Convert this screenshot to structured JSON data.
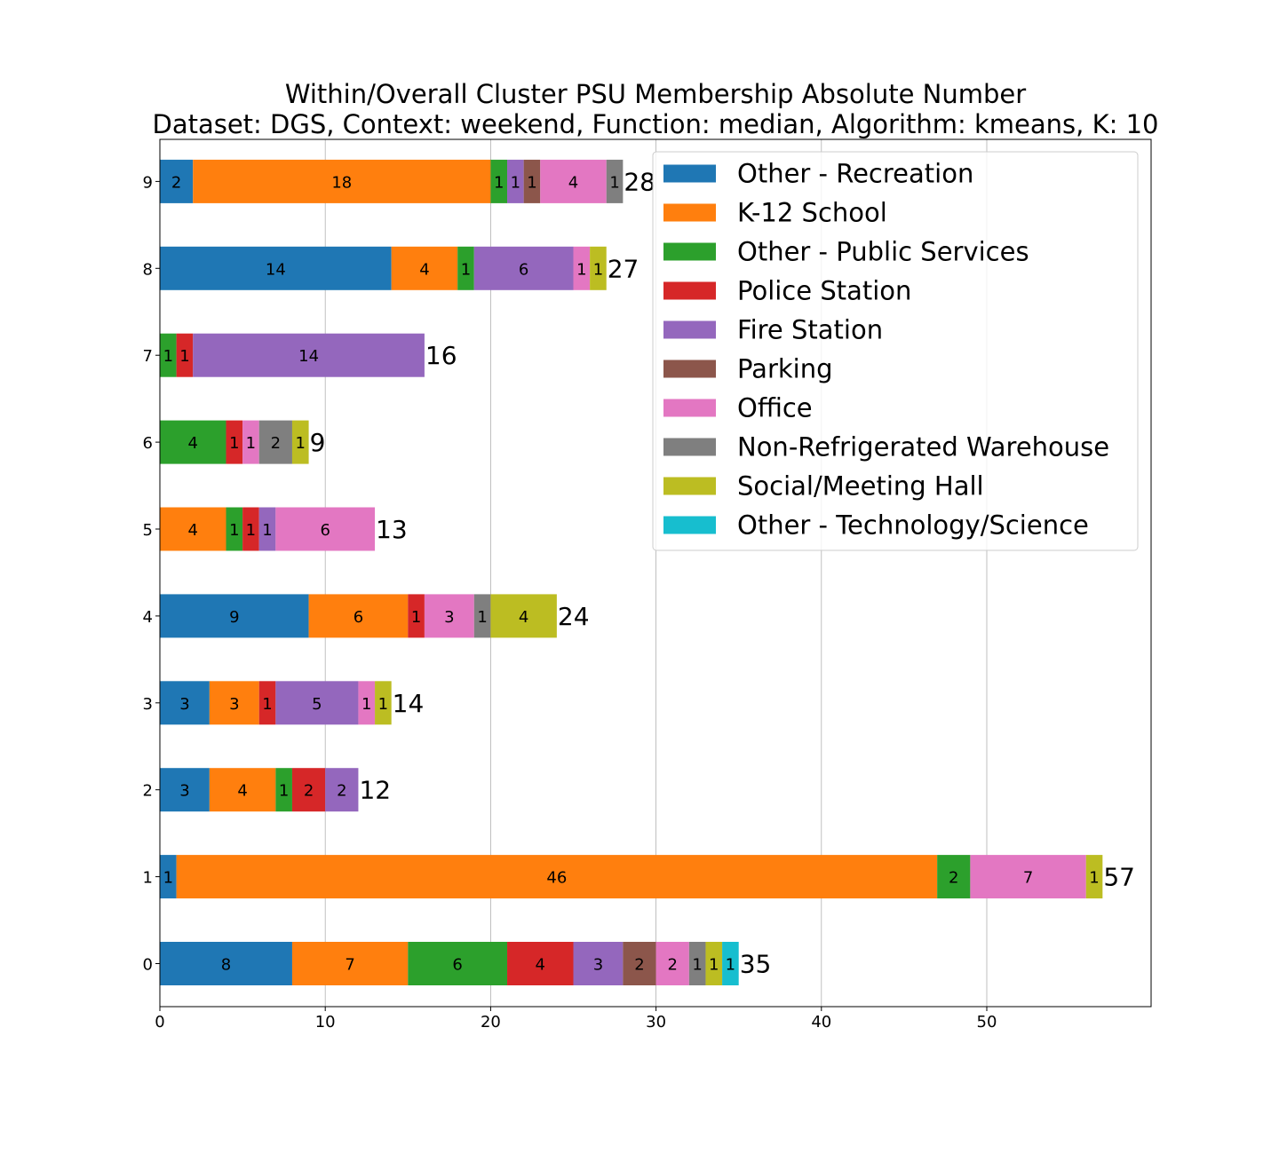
{
  "chart_data": {
    "type": "bar",
    "orientation": "horizontal",
    "stacked": true,
    "title": "Within/Overall Cluster PSU Membership Absolute Number",
    "subtitle": "Dataset: DGS, Context: weekend, Function: median, Algorithm: kmeans, K: 10",
    "xlabel": "",
    "ylabel": "",
    "categories": [
      "0",
      "1",
      "2",
      "3",
      "4",
      "5",
      "6",
      "7",
      "8",
      "9"
    ],
    "xlim": [
      0,
      60
    ],
    "xticks": [
      0,
      10,
      20,
      30,
      40,
      50
    ],
    "grid": "x",
    "legend_position": "top-right",
    "totals": [
      35,
      57,
      12,
      14,
      24,
      13,
      9,
      16,
      27,
      28
    ],
    "series": [
      {
        "name": "Other - Recreation",
        "color": "#1f77b4",
        "values": [
          8,
          1,
          3,
          3,
          9,
          0,
          0,
          0,
          14,
          2
        ]
      },
      {
        "name": "K-12 School",
        "color": "#ff7f0e",
        "values": [
          7,
          46,
          4,
          3,
          6,
          4,
          0,
          0,
          4,
          18
        ]
      },
      {
        "name": "Other - Public Services",
        "color": "#2ca02c",
        "values": [
          6,
          2,
          1,
          0,
          0,
          1,
          4,
          1,
          1,
          1
        ]
      },
      {
        "name": "Police Station",
        "color": "#d62728",
        "values": [
          4,
          0,
          2,
          1,
          1,
          1,
          1,
          1,
          0,
          0
        ]
      },
      {
        "name": "Fire Station",
        "color": "#9467bd",
        "values": [
          3,
          0,
          2,
          5,
          0,
          1,
          0,
          14,
          6,
          1
        ]
      },
      {
        "name": "Parking",
        "color": "#8c564b",
        "values": [
          2,
          0,
          0,
          0,
          0,
          0,
          0,
          0,
          0,
          1
        ]
      },
      {
        "name": "Office",
        "color": "#e377c2",
        "values": [
          2,
          7,
          0,
          1,
          3,
          6,
          1,
          0,
          1,
          4
        ]
      },
      {
        "name": "Non-Refrigerated Warehouse",
        "color": "#7f7f7f",
        "values": [
          1,
          0,
          0,
          0,
          1,
          0,
          2,
          0,
          0,
          1
        ]
      },
      {
        "name": "Social/Meeting Hall",
        "color": "#bcbd22",
        "values": [
          1,
          1,
          0,
          1,
          4,
          0,
          1,
          0,
          1,
          0
        ]
      },
      {
        "name": "Other - Technology/Science",
        "color": "#17becf",
        "values": [
          1,
          0,
          0,
          0,
          0,
          0,
          0,
          0,
          0,
          0
        ]
      }
    ]
  }
}
